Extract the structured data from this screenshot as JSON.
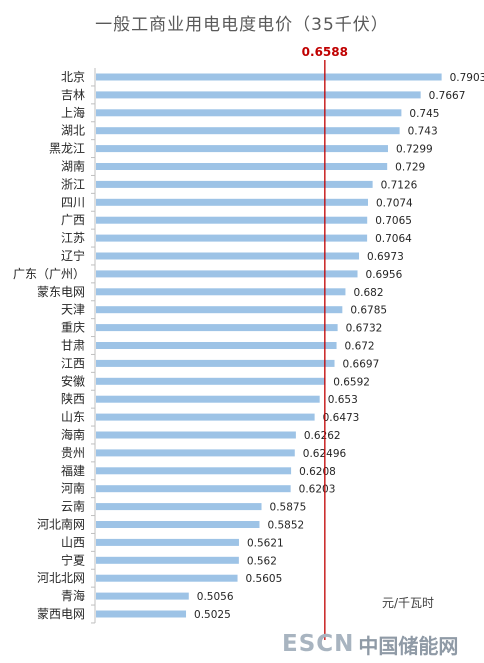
{
  "chart_data": {
    "type": "bar",
    "orientation": "horizontal",
    "title": "一般工商业用电电度电价（35千伏）",
    "unit": "元/千瓦时",
    "reference_line": {
      "value": 0.6588,
      "label": "0.6588",
      "color": "#c00000"
    },
    "bar_color": "#9dc3e6",
    "xlim": [
      0.4,
      0.82
    ],
    "categories": [
      "北京",
      "吉林",
      "上海",
      "湖北",
      "黑龙江",
      "湖南",
      "浙江",
      "四川",
      "广西",
      "江苏",
      "辽宁",
      "广东（广州）",
      "蒙东电网",
      "天津",
      "重庆",
      "甘肃",
      "江西",
      "安徽",
      "陕西",
      "山东",
      "海南",
      "贵州",
      "福建",
      "河南",
      "云南",
      "河北南网",
      "山西",
      "宁夏",
      "河北北网",
      "青海",
      "蒙西电网"
    ],
    "values": [
      0.7903,
      0.7667,
      0.745,
      0.743,
      0.7299,
      0.729,
      0.7126,
      0.7074,
      0.7065,
      0.7064,
      0.6973,
      0.6956,
      0.682,
      0.6785,
      0.6732,
      0.672,
      0.6697,
      0.6592,
      0.653,
      0.6473,
      0.6262,
      0.62496,
      0.6208,
      0.6203,
      0.5875,
      0.5852,
      0.5621,
      0.562,
      0.5605,
      0.5056,
      0.5025
    ],
    "value_labels": [
      "0.7903",
      "0.7667",
      "0.745",
      "0.743",
      "0.7299",
      "0.729",
      "0.7126",
      "0.7074",
      "0.7065",
      "0.7064",
      "0.6973",
      "0.6956",
      "0.682",
      "0.6785",
      "0.6732",
      "0.672",
      "0.6697",
      "0.6592",
      "0.653",
      "0.6473",
      "0.6262",
      "0.62496",
      "0.6208",
      "0.6203",
      "0.5875",
      "0.5852",
      "0.5621",
      "0.562",
      "0.5605",
      "0.5056",
      "0.5025"
    ]
  },
  "watermark": {
    "latin": "ESCN",
    "cjk": "中国储能网"
  }
}
